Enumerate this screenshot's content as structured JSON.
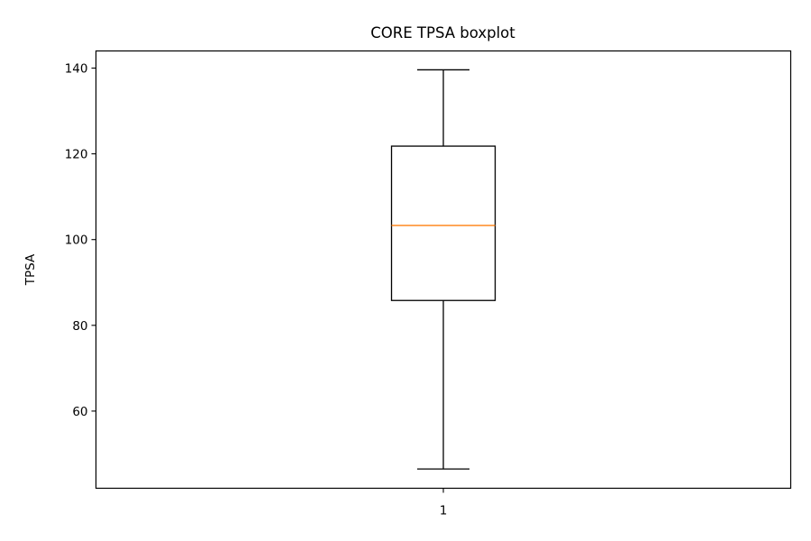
{
  "chart_data": {
    "type": "boxplot",
    "title": "CORE TPSA boxplot",
    "xlabel": "",
    "ylabel": "TPSA",
    "categories": [
      "1"
    ],
    "ylim": [
      42,
      144
    ],
    "yticks": [
      60,
      80,
      100,
      120,
      140
    ],
    "grid": false,
    "boxes": [
      {
        "category": "1",
        "whisker_low": 46.5,
        "q1": 85.8,
        "median": 103.3,
        "q3": 121.8,
        "whisker_high": 139.6
      }
    ],
    "colors": {
      "box": "#000000",
      "median": "#ff7f0e"
    }
  }
}
